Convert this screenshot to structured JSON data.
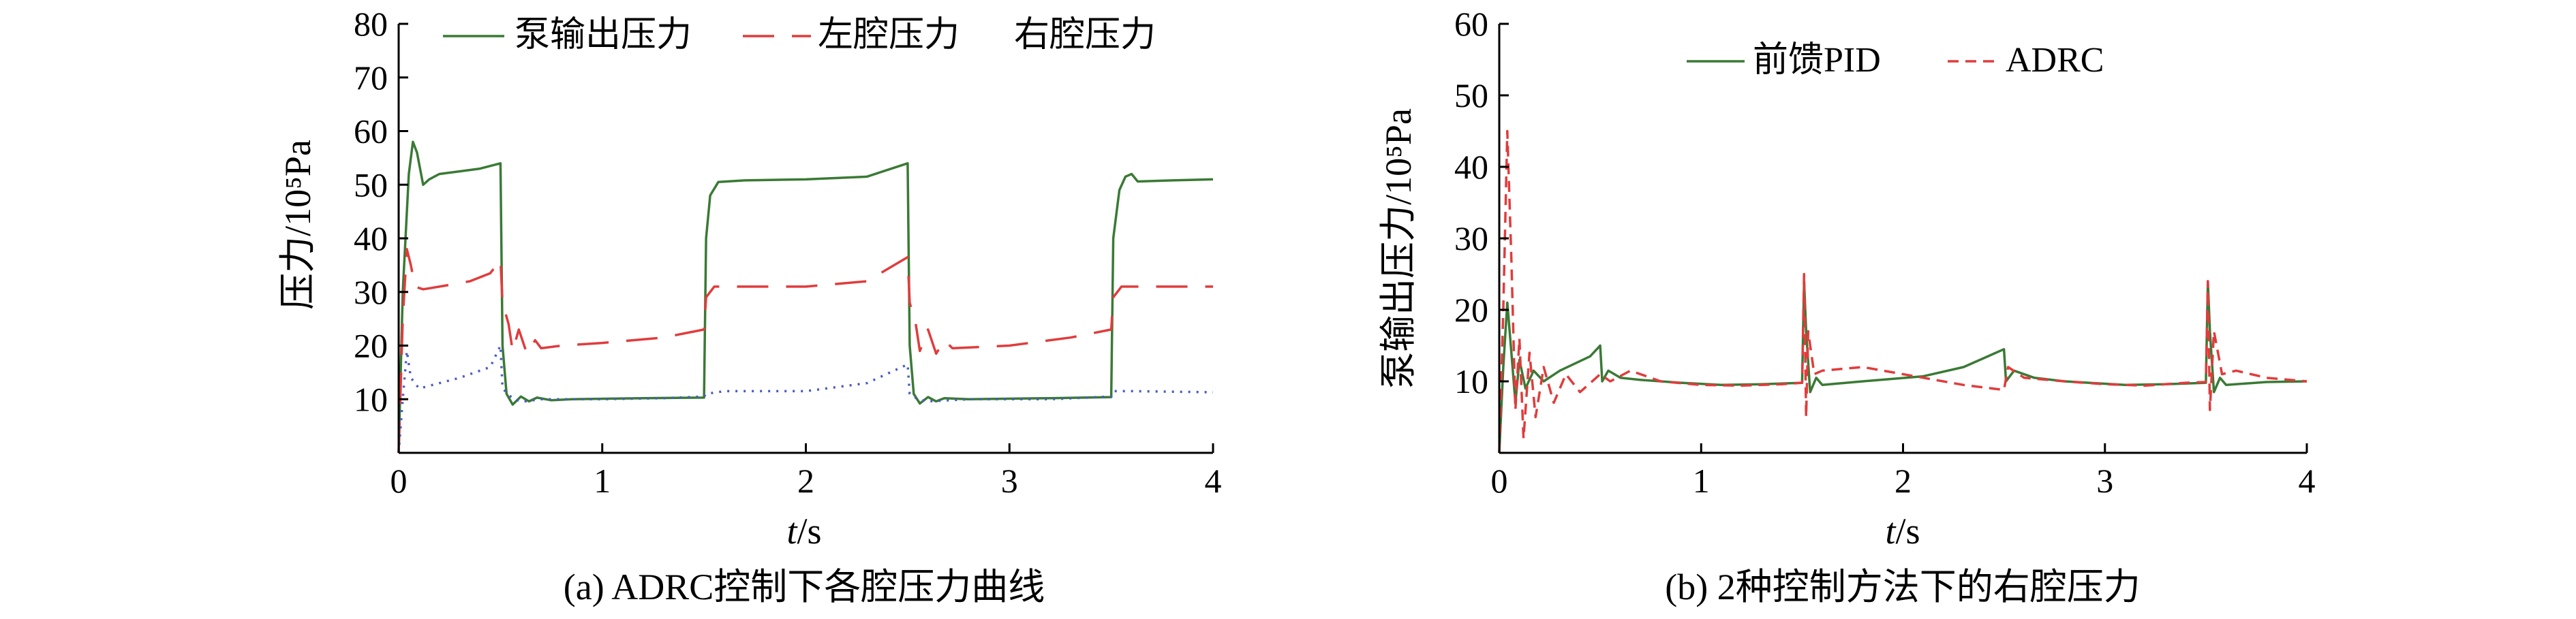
{
  "chart_data": [
    {
      "type": "line",
      "caption": "(a) ADRC控制下各腔压力曲线",
      "xlabel_italic": "t",
      "xlabel_unit": "/s",
      "ylabel": "压力/10⁵Pa",
      "xlim": [
        0,
        4
      ],
      "ylim": [
        0,
        80
      ],
      "xticks": [
        "0",
        "1",
        "2",
        "3",
        "4"
      ],
      "yticks": [
        "10",
        "20",
        "30",
        "40",
        "50",
        "60",
        "70",
        "80"
      ],
      "grid": false,
      "legend_position": "top",
      "series": [
        {
          "name": "泵输出压力",
          "color": "#3a7a35",
          "dash": "solid",
          "points": [
            [
              0,
              0
            ],
            [
              0.02,
              30
            ],
            [
              0.05,
              52
            ],
            [
              0.07,
              58
            ],
            [
              0.09,
              56
            ],
            [
              0.12,
              50
            ],
            [
              0.15,
              51
            ],
            [
              0.2,
              52
            ],
            [
              0.3,
              52.5
            ],
            [
              0.4,
              53
            ],
            [
              0.5,
              54
            ],
            [
              0.51,
              20
            ],
            [
              0.53,
              11
            ],
            [
              0.56,
              9
            ],
            [
              0.6,
              10.5
            ],
            [
              0.64,
              9.6
            ],
            [
              0.68,
              10.3
            ],
            [
              0.75,
              9.8
            ],
            [
              0.85,
              10
            ],
            [
              1.2,
              10.2
            ],
            [
              1.5,
              10.3
            ],
            [
              1.51,
              40
            ],
            [
              1.53,
              48
            ],
            [
              1.57,
              50.5
            ],
            [
              1.7,
              50.8
            ],
            [
              2.0,
              51
            ],
            [
              2.3,
              51.5
            ],
            [
              2.5,
              54
            ],
            [
              2.51,
              20
            ],
            [
              2.53,
              11
            ],
            [
              2.56,
              9.2
            ],
            [
              2.6,
              10.4
            ],
            [
              2.64,
              9.6
            ],
            [
              2.68,
              10.2
            ],
            [
              2.8,
              10
            ],
            [
              3.2,
              10.2
            ],
            [
              3.5,
              10.4
            ],
            [
              3.51,
              40
            ],
            [
              3.54,
              49
            ],
            [
              3.57,
              51.5
            ],
            [
              3.6,
              52
            ],
            [
              3.63,
              50.6
            ],
            [
              3.8,
              50.8
            ],
            [
              4.0,
              51
            ]
          ]
        },
        {
          "name": "左腔压力",
          "color": "#e03c3c",
          "dash": "long",
          "points": [
            [
              0,
              0
            ],
            [
              0.02,
              25
            ],
            [
              0.04,
              38
            ],
            [
              0.06,
              35
            ],
            [
              0.08,
              31
            ],
            [
              0.12,
              30.5
            ],
            [
              0.2,
              31
            ],
            [
              0.35,
              32
            ],
            [
              0.45,
              33.5
            ],
            [
              0.5,
              36
            ],
            [
              0.51,
              28
            ],
            [
              0.54,
              24
            ],
            [
              0.56,
              19
            ],
            [
              0.59,
              23
            ],
            [
              0.63,
              18.5
            ],
            [
              0.67,
              21
            ],
            [
              0.7,
              19.5
            ],
            [
              0.8,
              20
            ],
            [
              1.0,
              20.5
            ],
            [
              1.3,
              21.5
            ],
            [
              1.5,
              23
            ],
            [
              1.51,
              29
            ],
            [
              1.55,
              31
            ],
            [
              1.7,
              31
            ],
            [
              2.0,
              31
            ],
            [
              2.3,
              32
            ],
            [
              2.5,
              36.5
            ],
            [
              2.51,
              28
            ],
            [
              2.54,
              24
            ],
            [
              2.56,
              19
            ],
            [
              2.6,
              23
            ],
            [
              2.64,
              18.5
            ],
            [
              2.68,
              21
            ],
            [
              2.72,
              19.5
            ],
            [
              3.0,
              20
            ],
            [
              3.3,
              21.5
            ],
            [
              3.5,
              23
            ],
            [
              3.51,
              29
            ],
            [
              3.55,
              31
            ],
            [
              3.8,
              31
            ],
            [
              4.0,
              31
            ]
          ]
        },
        {
          "name": "右腔压力",
          "color": "#4a5bc4",
          "dash": "dotted",
          "points": [
            [
              0,
              0
            ],
            [
              0.02,
              10
            ],
            [
              0.04,
              19
            ],
            [
              0.06,
              14
            ],
            [
              0.1,
              12
            ],
            [
              0.15,
              12.5
            ],
            [
              0.3,
              14
            ],
            [
              0.45,
              16
            ],
            [
              0.5,
              20
            ],
            [
              0.51,
              12
            ],
            [
              0.55,
              10.5
            ],
            [
              0.6,
              9.5
            ],
            [
              0.7,
              10
            ],
            [
              1.0,
              10
            ],
            [
              1.3,
              10.2
            ],
            [
              1.5,
              10.5
            ],
            [
              1.51,
              11
            ],
            [
              1.6,
              11.5
            ],
            [
              2.0,
              11.5
            ],
            [
              2.3,
              13
            ],
            [
              2.5,
              16.5
            ],
            [
              2.51,
              11
            ],
            [
              2.55,
              10
            ],
            [
              2.6,
              9.6
            ],
            [
              2.8,
              10
            ],
            [
              3.2,
              10
            ],
            [
              3.5,
              10.5
            ],
            [
              3.51,
              11.5
            ],
            [
              3.6,
              11.5
            ],
            [
              4.0,
              11.3
            ]
          ]
        }
      ]
    },
    {
      "type": "line",
      "caption": "(b) 2种控制方法下的右腔压力",
      "xlabel_italic": "t",
      "xlabel_unit": "/s",
      "ylabel": "泵输出压力/10⁵Pa",
      "xlim": [
        0,
        4
      ],
      "ylim": [
        0,
        60
      ],
      "xticks": [
        "0",
        "1",
        "2",
        "3",
        "4"
      ],
      "yticks": [
        "10",
        "20",
        "30",
        "40",
        "50",
        "60"
      ],
      "grid": false,
      "legend_position": "top",
      "series": [
        {
          "name": "前馈PID",
          "color": "#3a7a35",
          "dash": "solid",
          "points": [
            [
              0,
              0
            ],
            [
              0.02,
              12
            ],
            [
              0.04,
              21
            ],
            [
              0.06,
              14
            ],
            [
              0.08,
              7
            ],
            [
              0.1,
              13
            ],
            [
              0.13,
              9
            ],
            [
              0.17,
              11.5
            ],
            [
              0.22,
              10
            ],
            [
              0.3,
              11.5
            ],
            [
              0.45,
              13.5
            ],
            [
              0.5,
              15
            ],
            [
              0.51,
              10
            ],
            [
              0.54,
              11.5
            ],
            [
              0.6,
              10.5
            ],
            [
              0.7,
              10.2
            ],
            [
              0.9,
              9.8
            ],
            [
              1.1,
              9.5
            ],
            [
              1.3,
              9.6
            ],
            [
              1.5,
              9.8
            ],
            [
              1.51,
              24
            ],
            [
              1.52,
              17
            ],
            [
              1.54,
              8.5
            ],
            [
              1.57,
              10.5
            ],
            [
              1.6,
              9.5
            ],
            [
              1.8,
              10
            ],
            [
              2.1,
              10.7
            ],
            [
              2.3,
              12
            ],
            [
              2.5,
              14.5
            ],
            [
              2.51,
              10
            ],
            [
              2.55,
              11.5
            ],
            [
              2.65,
              10.5
            ],
            [
              2.8,
              10
            ],
            [
              3.1,
              9.5
            ],
            [
              3.3,
              9.6
            ],
            [
              3.5,
              9.8
            ],
            [
              3.51,
              24
            ],
            [
              3.52,
              17
            ],
            [
              3.54,
              8.5
            ],
            [
              3.57,
              10.5
            ],
            [
              3.6,
              9.5
            ],
            [
              3.8,
              9.9
            ],
            [
              4.0,
              10
            ]
          ]
        },
        {
          "name": "ADRC",
          "color": "#e03c3c",
          "dash": "short",
          "points": [
            [
              0,
              0
            ],
            [
              0.02,
              20
            ],
            [
              0.04,
              45
            ],
            [
              0.06,
              27
            ],
            [
              0.08,
              6
            ],
            [
              0.1,
              16
            ],
            [
              0.12,
              2
            ],
            [
              0.15,
              14
            ],
            [
              0.18,
              5
            ],
            [
              0.22,
              12
            ],
            [
              0.27,
              7
            ],
            [
              0.33,
              11
            ],
            [
              0.4,
              8.5
            ],
            [
              0.5,
              11
            ],
            [
              0.55,
              10
            ],
            [
              0.65,
              11.5
            ],
            [
              0.8,
              10
            ],
            [
              1.0,
              9.5
            ],
            [
              1.2,
              9.4
            ],
            [
              1.4,
              9.6
            ],
            [
              1.5,
              9.8
            ],
            [
              1.51,
              25
            ],
            [
              1.52,
              5
            ],
            [
              1.53,
              17
            ],
            [
              1.56,
              11
            ],
            [
              1.6,
              11.5
            ],
            [
              1.8,
              12
            ],
            [
              2.0,
              11
            ],
            [
              2.3,
              9.5
            ],
            [
              2.5,
              8.8
            ],
            [
              2.52,
              12
            ],
            [
              2.6,
              10.5
            ],
            [
              2.8,
              10
            ],
            [
              3.0,
              9.6
            ],
            [
              3.2,
              9.4
            ],
            [
              3.4,
              9.8
            ],
            [
              3.5,
              9.9
            ],
            [
              3.51,
              24
            ],
            [
              3.52,
              6
            ],
            [
              3.54,
              17
            ],
            [
              3.58,
              11
            ],
            [
              3.65,
              11.5
            ],
            [
              3.8,
              10.5
            ],
            [
              4.0,
              10
            ]
          ]
        }
      ]
    }
  ]
}
